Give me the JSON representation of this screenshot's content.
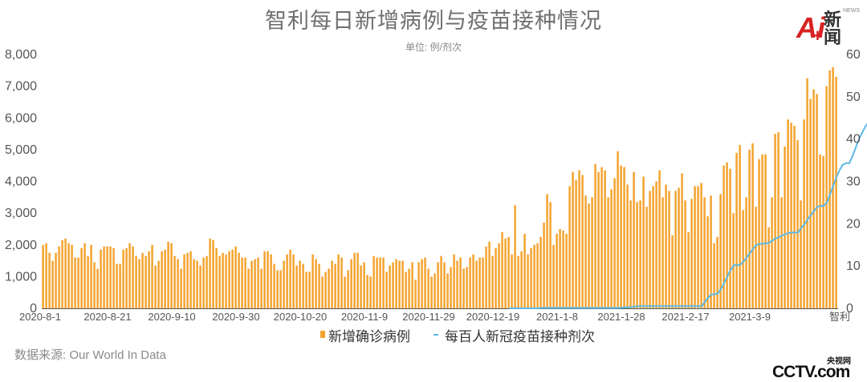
{
  "header": {
    "title": "智利每日新增病例与疫苗接种情况",
    "unit": "单位: 例/剂次"
  },
  "source": "数据来源: Our World In Data",
  "logos": {
    "ai_mark": "Ai",
    "ai_text": "新闻",
    "ai_small": "NEWS",
    "cctv_top": "央视网",
    "cctv_main": "CCTV.com"
  },
  "colors": {
    "bar": "#f4a32e",
    "line": "#5ab9e8",
    "axis": "#555555",
    "text": "#555555"
  },
  "chart_data": {
    "type": "bar",
    "x_ticks": [
      "2020-8-1",
      "2020-8-21",
      "2020-9-10",
      "2020-9-30",
      "2020-10-20",
      "2020-11-9",
      "2020-11-29",
      "2020-12-19",
      "2021-1-8",
      "2021-1-28",
      "2021-2-17",
      "2021-3-9"
    ],
    "x_end_label": "智利",
    "y_left": {
      "ticks": [
        "0",
        "1,000",
        "2,000",
        "3,000",
        "4,000",
        "5,000",
        "6,000",
        "7,000",
        "8,000"
      ],
      "range": [
        0,
        8000
      ]
    },
    "y_right": {
      "ticks": [
        "0",
        "10",
        "20",
        "30",
        "40",
        "50",
        "60"
      ],
      "range": [
        0,
        60
      ]
    },
    "legend": {
      "position": "bottom",
      "entries": [
        "新增确诊病例",
        "每百人新冠疫苗接种剂次"
      ]
    },
    "series": [
      {
        "name": "新增确诊病例",
        "type": "bar",
        "axis": "left",
        "start": "2020-8-1",
        "values": [
          2000,
          2050,
          1750,
          1500,
          1750,
          1950,
          2150,
          2200,
          2050,
          2000,
          1600,
          1600,
          1900,
          2050,
          1650,
          2000,
          1450,
          1250,
          1850,
          1950,
          1950,
          1950,
          1900,
          1400,
          1400,
          1850,
          1900,
          2050,
          1950,
          1650,
          1550,
          1750,
          1650,
          1800,
          2000,
          1350,
          1500,
          1800,
          1850,
          2100,
          2050,
          1650,
          1550,
          1250,
          1700,
          1750,
          1800,
          1550,
          1500,
          1350,
          1600,
          1650,
          2200,
          2150,
          1900,
          1650,
          1750,
          1700,
          1800,
          1850,
          1950,
          1750,
          1600,
          1600,
          1250,
          1500,
          1550,
          1600,
          1250,
          1800,
          1800,
          1700,
          1400,
          1200,
          1200,
          1500,
          1700,
          1850,
          1700,
          1350,
          1500,
          1400,
          1150,
          1150,
          1700,
          1550,
          1400,
          1000,
          1150,
          1250,
          1500,
          1400,
          1700,
          1600,
          1000,
          1200,
          1550,
          1750,
          1750,
          1350,
          1450,
          1050,
          1000,
          1650,
          1600,
          1600,
          1600,
          1150,
          1350,
          1450,
          1550,
          1500,
          1500,
          1150,
          1250,
          1450,
          900,
          1450,
          1550,
          1600,
          1250,
          1000,
          1100,
          1450,
          1650,
          1450,
          1100,
          1300,
          1700,
          1500,
          1600,
          1250,
          1300,
          1600,
          1700,
          1500,
          1600,
          1600,
          1950,
          2100,
          1650,
          1900,
          2050,
          2400,
          2200,
          2250,
          1700,
          3250,
          1650,
          1800,
          2350,
          1700,
          1900,
          2000,
          2050,
          2250,
          2700,
          3600,
          3350,
          2000,
          2350,
          2500,
          2450,
          2350,
          3850,
          4300,
          4050,
          4350,
          4200,
          3550,
          3300,
          3500,
          4550,
          4300,
          4450,
          4350,
          3500,
          3750,
          4100,
          4950,
          4500,
          4450,
          3900,
          3400,
          4300,
          3350,
          3400,
          4150,
          3200,
          3700,
          3850,
          4000,
          4350,
          3500,
          3900,
          3700,
          2300,
          3700,
          3800,
          4250,
          3400,
          2400,
          3450,
          3850,
          3850,
          3950,
          3500,
          2900,
          3550,
          2050,
          2250,
          3600,
          4500,
          4600,
          4400,
          3000,
          4900,
          5150,
          3100,
          3500,
          5000,
          5200,
          3200,
          4700,
          4850,
          4850,
          2550,
          3500,
          5500,
          5550,
          3500,
          5100,
          5950,
          5850,
          5750,
          5300,
          3400,
          5950,
          7250,
          6600,
          6900,
          6750,
          4850,
          4800,
          7000,
          7500,
          7600,
          7300
        ]
      },
      {
        "name": "每百人新冠疫苗接种剂次",
        "type": "line",
        "axis": "right",
        "start": "2020-12-24",
        "values": [
          0,
          0,
          0,
          0,
          0,
          0,
          0,
          0,
          0,
          0,
          0.1,
          0.1,
          0.1,
          0.1,
          0.1,
          0.1,
          0.1,
          0.1,
          0.1,
          0.1,
          0.1,
          0.1,
          0.1,
          0.1,
          0.1,
          0.1,
          0.1,
          0.1,
          0.1,
          0.1,
          0.1,
          0.1,
          0.1,
          0.1,
          0.1,
          0.15,
          0.2,
          0.2,
          0.3,
          0.4,
          0.5,
          0.5,
          0.5,
          0.5,
          0.5,
          0.5,
          0.5,
          0.5,
          0.5,
          0.5,
          0.5,
          0.5,
          0.5,
          0.5,
          0.5,
          0.5,
          0.5,
          0.5,
          0.5,
          0.5,
          0.5,
          1.5,
          2.5,
          3.3,
          3.3,
          3.5,
          4.5,
          6,
          7.5,
          9,
          10.2,
          10.2,
          10.3,
          11,
          12,
          13,
          14,
          15,
          15.2,
          15.3,
          15.3,
          15.5,
          16,
          16.5,
          16.8,
          17.2,
          17.5,
          17.8,
          17.9,
          17.9,
          17.9,
          19,
          19.8,
          21,
          22,
          23,
          24,
          24.2,
          24.2,
          25,
          27,
          29,
          31,
          32.7,
          34,
          34.3,
          34.3,
          36,
          38,
          40,
          41.5,
          43,
          44,
          44.3,
          44.3,
          45,
          47,
          48.5,
          49.5,
          50.3,
          50.7,
          50.8,
          50.8
        ]
      }
    ]
  }
}
